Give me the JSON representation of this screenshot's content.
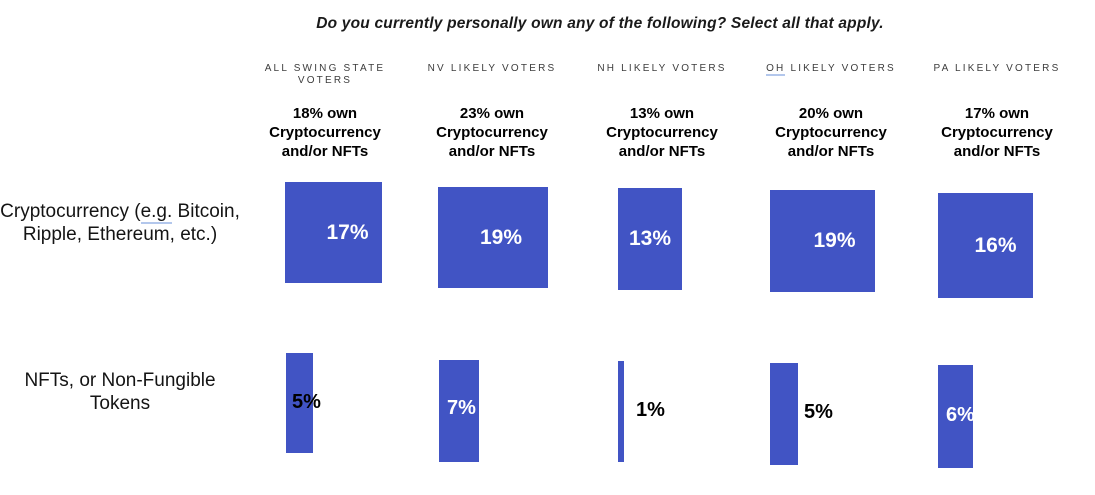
{
  "chart_data": {
    "type": "bar",
    "title": "Do you currently personally own any of the following? Select all that apply.",
    "bar_color": "#4154c4",
    "label_color_inside": "#ffffff",
    "label_color_outside": "#000000",
    "legend_position": "none",
    "grid": false,
    "columns": [
      {
        "header": "ALL SWING STATE VOTERS",
        "header_parts": [
          {
            "text": "ALL SWING STATE VOTERS",
            "u": false
          }
        ],
        "subheader": "18% own Cryptocurrency and/or NFTs"
      },
      {
        "header": "NV LIKELY VOTERS",
        "header_parts": [
          {
            "text": "NV LIKELY VOTERS",
            "u": false
          }
        ],
        "subheader": "23% own Cryptocurrency and/or NFTs"
      },
      {
        "header": "NH LIKELY VOTERS",
        "header_parts": [
          {
            "text": "NH LIKELY VOTERS",
            "u": false
          }
        ],
        "subheader": "13% own Cryptocurrency and/or NFTs"
      },
      {
        "header": "OH LIKELY VOTERS",
        "header_parts": [
          {
            "text": "OH",
            "u": true
          },
          {
            "text": " LIKELY VOTERS",
            "u": false
          }
        ],
        "subheader": "20% own Cryptocurrency and/or NFTs"
      },
      {
        "header": "PA LIKELY VOTERS",
        "header_parts": [
          {
            "text": "PA LIKELY VOTERS",
            "u": false
          }
        ],
        "subheader": "17% own Cryptocurrency and/or NFTs"
      }
    ],
    "rows": [
      {
        "label": "Cryptocurrency (e.g. Bitcoin, Ripple, Ethereum, etc.)",
        "label_parts": [
          {
            "text": "Cryptocurrency (",
            "u": false
          },
          {
            "text": "e.g.",
            "u": true
          },
          {
            "text": " Bitcoin, Ripple, Ethereum, etc.)",
            "u": false
          }
        ],
        "values": [
          17,
          19,
          13,
          19,
          16
        ],
        "value_labels": [
          "17%",
          "19%",
          "13%",
          "19%",
          "16%"
        ]
      },
      {
        "label": "NFTs, or Non-Fungible Tokens",
        "label_parts": [
          {
            "text": "NFTs, or Non-Fungible Tokens",
            "u": false
          }
        ],
        "values": [
          5,
          7,
          1,
          5,
          6
        ],
        "value_labels": [
          "5%",
          "7%",
          "1%",
          "5%",
          "6%"
        ]
      }
    ]
  }
}
